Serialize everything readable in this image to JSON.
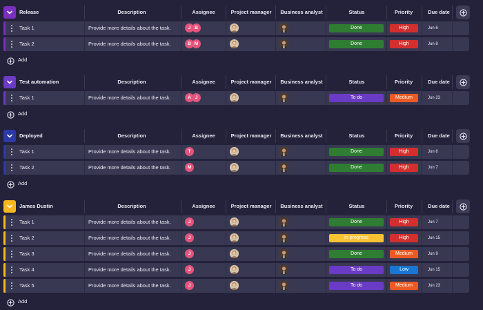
{
  "columns": {
    "description": "Description",
    "assignee": "Assignee",
    "project_manager": "Project manager",
    "business_analyst": "Business analyst",
    "status": "Status",
    "priority": "Priority",
    "due_date": "Due date"
  },
  "add_label": "Add",
  "colors": {
    "status": {
      "Done": "#2e7d32",
      "To do": "#6a3bc4",
      "In progress": "#f9c134"
    },
    "priority": {
      "High": "#d32f2f",
      "Medium": "#ec5a24",
      "Low": "#1976d2"
    }
  },
  "groups": [
    {
      "title": "Release",
      "color": "#7b2fbe",
      "tasks": [
        {
          "name": "Task 1",
          "description": "Provide more details about the task.",
          "assignees": [
            "J",
            "B"
          ],
          "status": "Done",
          "priority": "High",
          "due": "Jun 6"
        },
        {
          "name": "Task 2",
          "description": "Provide more details about the task.",
          "assignees": [
            "B",
            "M"
          ],
          "status": "Done",
          "priority": "High",
          "due": "Jun 8"
        }
      ]
    },
    {
      "title": "Test automation",
      "color": "#6b3bc4",
      "tasks": [
        {
          "name": "Task 1",
          "description": "Provide more details about the task.",
          "assignees": [
            "A",
            "J"
          ],
          "status": "To do",
          "priority": "Medium",
          "due": "Jun 23"
        }
      ]
    },
    {
      "title": "Deployed",
      "color": "#2c3aa8",
      "tasks": [
        {
          "name": "Task 1",
          "description": "Provide more details about the task.",
          "assignees": [
            "T"
          ],
          "status": "Done",
          "priority": "High",
          "due": "Jun 6"
        },
        {
          "name": "Task 2",
          "description": "Provide more details about the task.",
          "assignees": [
            "M"
          ],
          "status": "Done",
          "priority": "High",
          "due": "Jun 7"
        }
      ]
    },
    {
      "title": "James Dustin",
      "color": "#f5b81e",
      "tasks": [
        {
          "name": "Task 1",
          "description": "Provide more details about the task.",
          "assignees": [
            "J"
          ],
          "status": "Done",
          "priority": "High",
          "due": "Jun 7"
        },
        {
          "name": "Task 2",
          "description": "Provide more details about the task.",
          "assignees": [
            "J"
          ],
          "status": "In progress",
          "priority": "High",
          "due": "Jun 15"
        },
        {
          "name": "Task 3",
          "description": "Provide more details about the task.",
          "assignees": [
            "J"
          ],
          "status": "Done",
          "priority": "Medium",
          "due": "Jun 9"
        },
        {
          "name": "Task 4",
          "description": "Provide more details about the task.",
          "assignees": [
            "J"
          ],
          "status": "To do",
          "priority": "Low",
          "due": "Jun 15"
        },
        {
          "name": "Task 5",
          "description": "Provide more details about the task.",
          "assignees": [
            "J"
          ],
          "status": "To do",
          "priority": "Medium",
          "due": "Jun 23"
        }
      ]
    }
  ]
}
